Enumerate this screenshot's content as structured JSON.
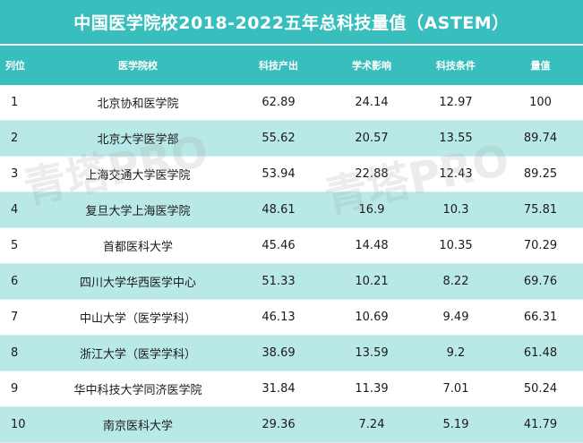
{
  "title": "中国医学院校2018-2022五年总科技量值（ASTEM）",
  "headers": {
    "rank": "列位",
    "school": "医学院校",
    "production": "科技产出",
    "academic": "学术影响",
    "conditions": "科技条件",
    "total": "量值"
  },
  "rows": [
    {
      "rank": "1",
      "school": "北京协和医学院",
      "production": "62.89",
      "academic": "24.14",
      "conditions": "12.97",
      "total": "100"
    },
    {
      "rank": "2",
      "school": "北京大学医学部",
      "production": "55.62",
      "academic": "20.57",
      "conditions": "13.55",
      "total": "89.74"
    },
    {
      "rank": "3",
      "school": "上海交通大学医学院",
      "production": "53.94",
      "academic": "22.88",
      "conditions": "12.43",
      "total": "89.25"
    },
    {
      "rank": "4",
      "school": "复旦大学上海医学院",
      "production": "48.61",
      "academic": "16.9",
      "conditions": "10.3",
      "total": "75.81"
    },
    {
      "rank": "5",
      "school": "首都医科大学",
      "production": "45.46",
      "academic": "14.48",
      "conditions": "10.35",
      "total": "70.29"
    },
    {
      "rank": "6",
      "school": "四川大学华西医学中心",
      "production": "51.33",
      "academic": "10.21",
      "conditions": "8.22",
      "total": "69.76"
    },
    {
      "rank": "7",
      "school": "中山大学（医学学科）",
      "production": "46.13",
      "academic": "10.69",
      "conditions": "9.49",
      "total": "66.31"
    },
    {
      "rank": "8",
      "school": "浙江大学（医学学科）",
      "production": "38.69",
      "academic": "13.59",
      "conditions": "9.2",
      "total": "61.48"
    },
    {
      "rank": "9",
      "school": "华中科技大学同济医学院",
      "production": "31.84",
      "academic": "11.39",
      "conditions": "7.01",
      "total": "50.24"
    },
    {
      "rank": "10",
      "school": "南京医科大学",
      "production": "29.36",
      "academic": "7.24",
      "conditions": "5.19",
      "total": "41.79"
    }
  ],
  "watermark": "青塔PRO",
  "colors": {
    "header": "#38bfbd",
    "alt_row": "#b9e9e6"
  }
}
